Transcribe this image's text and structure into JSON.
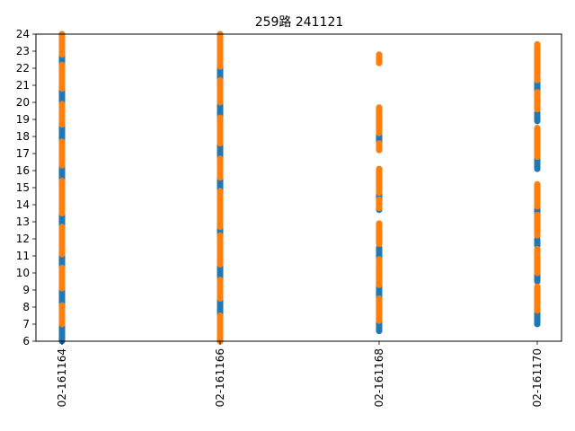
{
  "chart_data": {
    "type": "scatter",
    "title": "259路  241121",
    "xlabel": "",
    "ylabel": "",
    "ylim": [
      6,
      24
    ],
    "yticks": [
      6,
      7,
      8,
      9,
      10,
      11,
      12,
      13,
      14,
      15,
      16,
      17,
      18,
      19,
      20,
      21,
      22,
      23,
      24
    ],
    "categories": [
      "02-161164",
      "02-161166",
      "02-161168",
      "02-161170"
    ],
    "grid": false,
    "legend": "none",
    "series": [
      {
        "color": "#1f77b4",
        "values": [
          [
            [
              6.0,
              24.0
            ]
          ],
          [
            [
              6.0,
              24.0
            ]
          ],
          [
            [
              6.6,
              9.3
            ],
            [
              10.1,
              11.5
            ],
            [
              13.7,
              14.6
            ],
            [
              17.4,
              18.1
            ]
          ],
          [
            [
              7.0,
              7.7
            ],
            [
              9.5,
              9.9
            ],
            [
              11.6,
              12.0
            ],
            [
              13.5,
              13.8
            ],
            [
              16.1,
              16.7
            ],
            [
              18.9,
              19.4
            ],
            [
              20.6,
              21.2
            ]
          ]
        ]
      },
      {
        "color": "#ff7f0e",
        "values": [
          [
            [
              7.0,
              8.1
            ],
            [
              9.1,
              10.3
            ],
            [
              11.1,
              12.7
            ],
            [
              13.5,
              15.4
            ],
            [
              16.3,
              17.7
            ],
            [
              18.7,
              19.9
            ],
            [
              20.8,
              22.2
            ],
            [
              22.8,
              24.0
            ]
          ],
          [
            [
              6.0,
              7.5
            ],
            [
              8.5,
              9.6
            ],
            [
              10.5,
              12.2
            ],
            [
              12.7,
              14.8
            ],
            [
              15.6,
              16.7
            ],
            [
              17.6,
              19.1
            ],
            [
              20.0,
              21.3
            ],
            [
              22.1,
              24.0
            ]
          ],
          [
            [
              7.2,
              8.5
            ],
            [
              9.3,
              10.8
            ],
            [
              11.7,
              12.9
            ],
            [
              13.8,
              14.3
            ],
            [
              14.7,
              16.1
            ],
            [
              17.2,
              17.6
            ],
            [
              18.2,
              19.7
            ],
            [
              22.3,
              22.8
            ]
          ],
          [
            [
              7.8,
              9.2
            ],
            [
              10.0,
              11.4
            ],
            [
              12.2,
              13.4
            ],
            [
              13.9,
              15.2
            ],
            [
              16.8,
              18.5
            ],
            [
              19.6,
              20.6
            ],
            [
              21.3,
              23.4
            ]
          ]
        ]
      }
    ]
  }
}
